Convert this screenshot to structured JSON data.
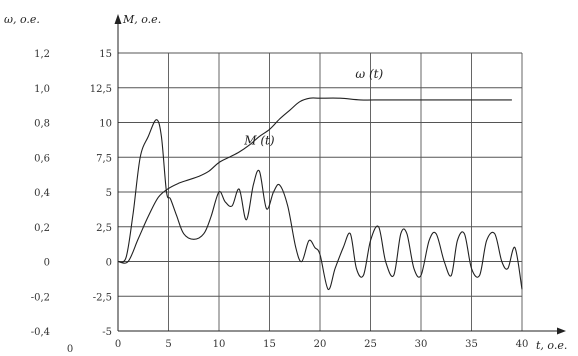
{
  "chart_data": {
    "type": "line",
    "xlabel": "t, o.e.",
    "ylabel_left": "ω, o.e.",
    "ylabel_right": "M, o.e.",
    "xlim": [
      0,
      40
    ],
    "ylim_left": [
      -0.4,
      1.2
    ],
    "ylim_right": [
      -5,
      15
    ],
    "grid": true,
    "x_ticks": [
      "0",
      "5",
      "10",
      "15",
      "20",
      "25",
      "30",
      "35",
      "40"
    ],
    "x_origin_label": "0",
    "y_left_ticks": [
      "1,2",
      "1,0",
      "0,8",
      "0,6",
      "0,4",
      "0,2",
      "0",
      "-0,2",
      "-0,4"
    ],
    "y_right_ticks": [
      "15",
      "12,5",
      "10",
      "7,5",
      "5",
      "2,5",
      "0",
      "-2,5",
      "-5"
    ],
    "series": [
      {
        "name": "ω (t)",
        "axis": "left",
        "x": [
          0,
          1,
          2,
          3,
          4,
          5,
          6,
          7,
          8,
          9,
          10,
          11,
          12,
          13,
          14,
          15,
          16,
          17,
          18,
          19,
          20,
          22,
          24,
          26,
          28,
          30,
          32,
          34,
          36,
          38,
          39
        ],
        "values": [
          0.0,
          0.0,
          0.13,
          0.26,
          0.37,
          0.42,
          0.45,
          0.47,
          0.49,
          0.52,
          0.57,
          0.6,
          0.63,
          0.67,
          0.72,
          0.76,
          0.82,
          0.87,
          0.92,
          0.94,
          0.94,
          0.94,
          0.93,
          0.93,
          0.93,
          0.93,
          0.93,
          0.93,
          0.93,
          0.93,
          0.93
        ]
      },
      {
        "name": "M (t)",
        "axis": "right",
        "x": [
          0,
          0.8,
          1.5,
          2.2,
          3,
          3.8,
          4.3,
          4.8,
          5.2,
          5.8,
          6.5,
          7.5,
          8.5,
          9.2,
          10,
          10.6,
          11.3,
          12,
          12.7,
          13.4,
          14,
          14.7,
          15.4,
          16,
          16.8,
          17.6,
          18.2,
          18.9,
          19.5,
          20,
          20.8,
          21.5,
          22.3,
          23,
          23.6,
          24.3,
          25,
          25.8,
          26.5,
          27.3,
          28,
          28.6,
          29.3,
          30,
          30.8,
          31.5,
          32.3,
          33,
          33.6,
          34.3,
          35,
          35.8,
          36.5,
          37.3,
          38,
          38.6,
          39.3,
          40
        ],
        "values": [
          0,
          0.3,
          3.5,
          7.5,
          9.0,
          10.2,
          9.0,
          5.0,
          4.5,
          3.3,
          2.0,
          1.6,
          2.0,
          3.2,
          5.0,
          4.3,
          4.0,
          5.2,
          3.0,
          5.5,
          6.5,
          3.8,
          5.0,
          5.5,
          4.0,
          1.0,
          0.0,
          1.5,
          1.0,
          0.5,
          -2.0,
          -0.5,
          1.0,
          2.0,
          -0.5,
          -1.0,
          1.5,
          2.5,
          0.0,
          -1.0,
          2.0,
          2.0,
          -0.5,
          -1.0,
          1.5,
          2.0,
          0.0,
          -1.0,
          1.5,
          2.0,
          -0.5,
          -1.0,
          1.5,
          2.0,
          0.0,
          -0.5,
          1.0,
          -2.0
        ]
      }
    ],
    "annotations": [
      {
        "text": "ω (t)",
        "x": 23.5,
        "y_left": 1.0
      },
      {
        "text": "M (t)",
        "x": 12.5,
        "y_left": 0.64
      }
    ]
  }
}
